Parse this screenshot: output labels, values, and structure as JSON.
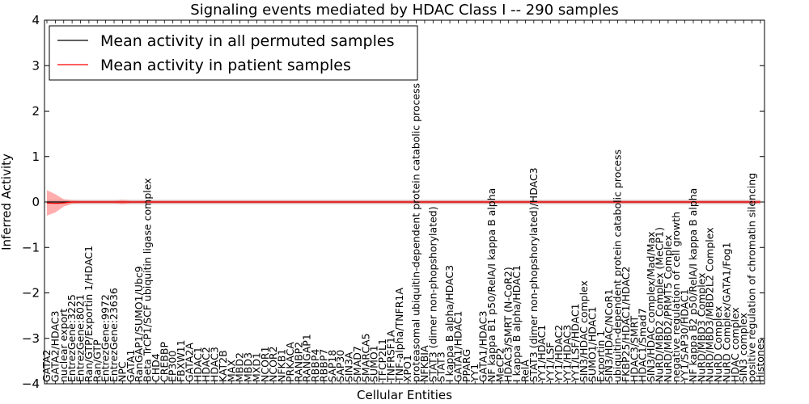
{
  "chart_data": {
    "type": "line",
    "title": "Signaling events mediated by HDAC Class I -- 290 samples",
    "xlabel": "Cellular Entities",
    "ylabel": "Inferred Activity",
    "ylim": [
      -4,
      4
    ],
    "yticks": [
      "4",
      "3",
      "2",
      "1",
      "0",
      "−1",
      "−2",
      "−3",
      "−4"
    ],
    "legend_position": "top-left",
    "categories": [
      "GATA2",
      "GATA2/HDAC3",
      "nuclear export",
      "EntrezGene:3225",
      "EntrezGene:8021",
      "Ran/GTP/Exportin 1/HDAC1",
      "Ran/GTP",
      "EntrezGene:9972",
      "EntrezGene:23636",
      "NPC",
      "GATA1",
      "RanGAP1/SUMO1/Ubc9",
      "Beta TrCP1/SCF ubiquitin ligase complex",
      "CHD4",
      "CREBBP",
      "EP300",
      "FBXW11",
      "GATA2A",
      "HDAC1",
      "HDAC2",
      "HDAC3",
      "KAT2B",
      "MAX",
      "MBD2",
      "MBD3",
      "MXD1",
      "NCOR1",
      "NCOR2",
      "NFKB1",
      "PRKACA",
      "RANBP2",
      "RANGAP1",
      "RBBP4",
      "RBBP7",
      "SAP18",
      "SAP30",
      "SIN3A",
      "SMAD7",
      "SMARCA5",
      "SUMO1",
      "TFCP2L1",
      "TNFRSF1A",
      "TNF-alpha/TNFR1A",
      "XPO1",
      "proteasomal ubiquitin-dependent protein catabolic process",
      "NFKBIA",
      "STAT3 (dimer non-phopshorylated)",
      "STAT3",
      "I kappa B alpha/HDAC3",
      "GATA1/HDAC1",
      "PPARG",
      "YY1",
      "GATA1/HDAC3",
      "NF kappa B1 p50/RelA/I kappa B alpha",
      "MeCP2",
      "HDAC3/SMRT (N-CoR2)",
      "I kappa B alpha/HDAC1",
      "RelA",
      "STAT3 (dimer non-phopshorylated)/HDAC3",
      "YY1/HDAC1",
      "YY1/LSF",
      "YY1/HDAC2",
      "YY1/HDAC3",
      "YY1/LSF/HDAC1",
      "SIN3/HDAC complex",
      "SUMO1/HDAC1",
      "Exportin 1",
      "SIN3/HDAC/NCoR1",
      "ubiquitin-dependent protein catabolic process",
      "FKBP25/HDAC1/HDAC2",
      "HDAC3/SMRT",
      "HDAC1/Smad7",
      "SIN3/HDAC complex/Mad/Max",
      "NuRD/MBD2 Complex (MeCP1)",
      "NuRD/MBD2/PRMT5 Complex",
      "negative regulation of cell growth",
      "YY1/SAP30/HDAC1",
      "NF kappa B2 p50/RelA/I kappa B alpha",
      "NuRD/MBD3 Complex",
      "NuRD/MBD3/MBD2L2 Complex",
      "NuRD Complex",
      "NuRD Complex/GATA1/Fog1",
      "HDAC complex",
      "SIN3 complex",
      "positive regulation of chromatin silencing",
      "Histones"
    ],
    "series": [
      {
        "name": "Mean activity in all permuted samples",
        "color": "#000000",
        "values": [
          0.0,
          0.0,
          0.0,
          0.0,
          0.0,
          0.0,
          0.0,
          0.0,
          0.0,
          0.0,
          0.0,
          0.0,
          0.0,
          0.0,
          0.0,
          0.0,
          0.0,
          0.0,
          0.0,
          0.0,
          0.0,
          0.0,
          0.0,
          0.0,
          0.0,
          0.0,
          0.0,
          0.0,
          0.0,
          0.0,
          0.0,
          0.0,
          0.0,
          0.0,
          0.0,
          0.0,
          0.0,
          0.0,
          0.0,
          0.0,
          0.0,
          0.0,
          0.0,
          0.0,
          0.0,
          0.0,
          0.0,
          0.0,
          0.0,
          0.0,
          0.0,
          0.0,
          0.0,
          0.0,
          0.0,
          0.0,
          0.0,
          0.0,
          0.0,
          0.0,
          0.0,
          0.0,
          0.0,
          0.0,
          0.0,
          0.0,
          0.0,
          0.0,
          0.0,
          0.0,
          0.0,
          0.0,
          0.0,
          0.0,
          0.0,
          0.0,
          0.0,
          0.0,
          0.0,
          0.0,
          0.0,
          0.0,
          0.0,
          0.0,
          0.0,
          0.0
        ],
        "band": [
          0.05,
          0.05,
          0.05,
          0.05,
          0.05,
          0.05,
          0.05,
          0.05,
          0.05,
          0.05,
          0.05,
          0.05,
          0.05,
          0.05,
          0.05,
          0.05,
          0.05,
          0.05,
          0.05,
          0.05,
          0.05,
          0.05,
          0.05,
          0.05,
          0.05,
          0.05,
          0.05,
          0.05,
          0.05,
          0.05,
          0.05,
          0.05,
          0.05,
          0.05,
          0.05,
          0.05,
          0.05,
          0.05,
          0.05,
          0.05,
          0.05,
          0.05,
          0.05,
          0.05,
          0.05,
          0.05,
          0.05,
          0.05,
          0.05,
          0.05,
          0.05,
          0.05,
          0.05,
          0.05,
          0.05,
          0.05,
          0.05,
          0.05,
          0.05,
          0.05,
          0.05,
          0.05,
          0.05,
          0.05,
          0.05,
          0.05,
          0.05,
          0.05,
          0.05,
          0.05,
          0.05,
          0.05,
          0.05,
          0.05,
          0.05,
          0.05,
          0.05,
          0.05,
          0.05,
          0.05,
          0.05,
          0.05,
          0.05,
          0.05,
          0.05,
          0.05
        ]
      },
      {
        "name": "Mean activity in patient samples",
        "color": "#ff0000",
        "values": [
          -0.02,
          -0.03,
          -0.02,
          0.0,
          0.0,
          0.0,
          0.0,
          0.0,
          0.0,
          0.0,
          0.0,
          0.0,
          0.0,
          0.0,
          0.0,
          0.0,
          0.0,
          0.0,
          0.0,
          0.0,
          0.0,
          0.0,
          0.0,
          0.0,
          0.0,
          0.0,
          0.0,
          0.0,
          0.0,
          0.0,
          0.0,
          0.0,
          0.0,
          0.0,
          0.0,
          0.0,
          0.0,
          0.0,
          0.0,
          0.0,
          0.0,
          0.0,
          0.0,
          0.0,
          0.0,
          0.0,
          0.0,
          0.0,
          0.0,
          0.0,
          0.0,
          0.0,
          0.0,
          0.0,
          0.0,
          0.0,
          0.0,
          0.0,
          0.0,
          0.0,
          0.0,
          0.0,
          0.0,
          0.0,
          0.0,
          0.0,
          0.0,
          0.0,
          0.0,
          0.0,
          0.0,
          0.0,
          0.0,
          0.0,
          0.0,
          0.0,
          0.0,
          0.0,
          0.0,
          0.0,
          0.0,
          0.0,
          0.0,
          0.0,
          0.0,
          0.0
        ],
        "band": [
          0.28,
          0.2,
          0.08,
          0.04,
          0.03,
          0.03,
          0.03,
          0.03,
          0.03,
          0.05,
          0.03,
          0.03,
          0.03,
          0.03,
          0.03,
          0.03,
          0.03,
          0.03,
          0.03,
          0.03,
          0.03,
          0.03,
          0.03,
          0.03,
          0.03,
          0.03,
          0.03,
          0.03,
          0.03,
          0.03,
          0.03,
          0.03,
          0.03,
          0.03,
          0.03,
          0.03,
          0.03,
          0.03,
          0.03,
          0.03,
          0.03,
          0.03,
          0.03,
          0.03,
          0.03,
          0.03,
          0.03,
          0.03,
          0.03,
          0.03,
          0.03,
          0.03,
          0.03,
          0.03,
          0.03,
          0.03,
          0.03,
          0.03,
          0.03,
          0.03,
          0.03,
          0.03,
          0.03,
          0.03,
          0.03,
          0.03,
          0.03,
          0.03,
          0.03,
          0.03,
          0.03,
          0.03,
          0.03,
          0.03,
          0.03,
          0.03,
          0.03,
          0.03,
          0.03,
          0.03,
          0.03,
          0.03,
          0.03,
          0.03,
          0.03,
          0.03
        ]
      }
    ]
  }
}
